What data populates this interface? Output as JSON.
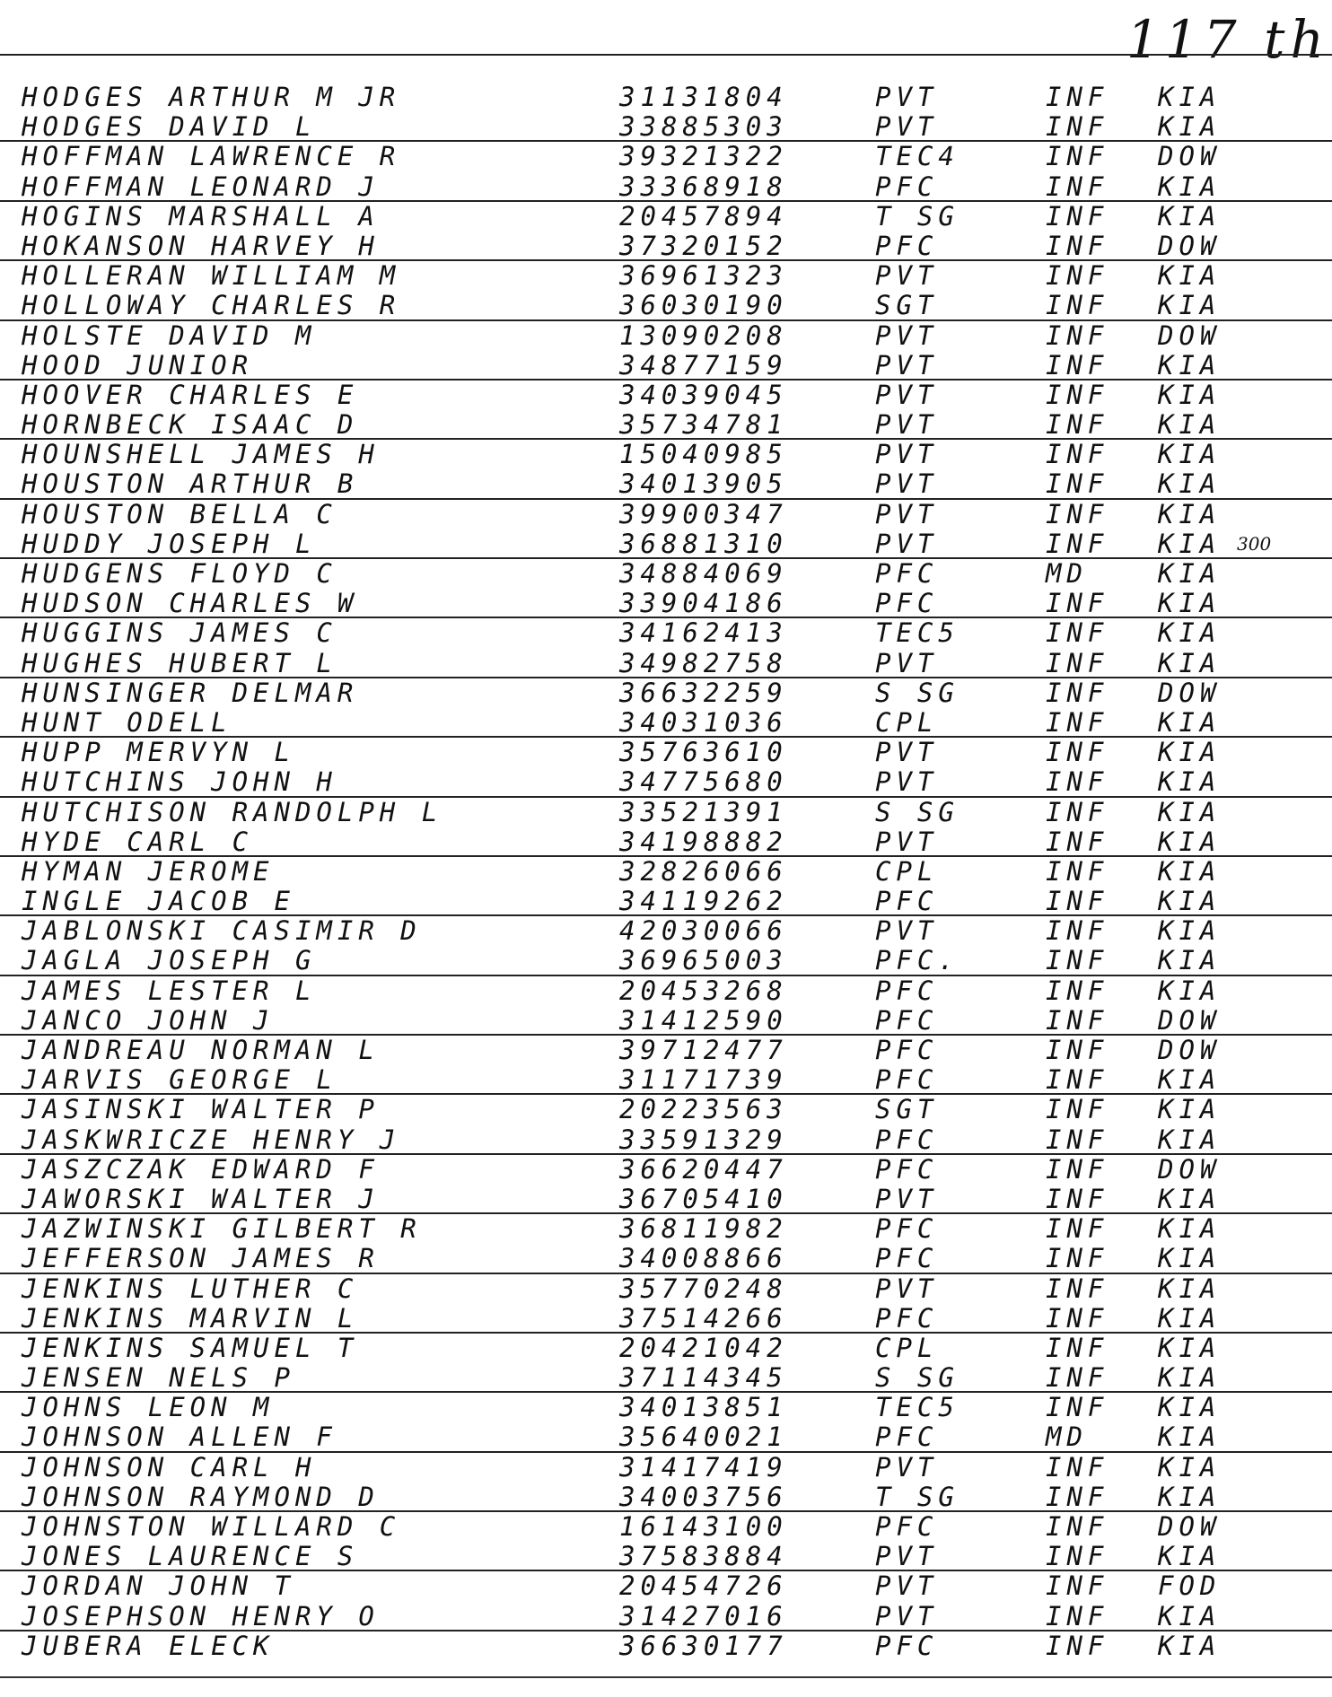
{
  "page_label": "117 th",
  "records": [
    {
      "name": "HODGES ARTHUR M JR",
      "serial": "31131804",
      "rank": "PVT",
      "arm": "INF",
      "status": "KIA"
    },
    {
      "name": "HODGES DAVID L",
      "serial": "33885303",
      "rank": "PVT",
      "arm": "INF",
      "status": "KIA"
    },
    {
      "name": "HOFFMAN LAWRENCE R",
      "serial": "39321322",
      "rank": "TEC4",
      "arm": "INF",
      "status": "DOW"
    },
    {
      "name": "HOFFMAN LEONARD J",
      "serial": "33368918",
      "rank": "PFC",
      "arm": "INF",
      "status": "KIA"
    },
    {
      "name": "HOGINS MARSHALL A",
      "serial": "20457894",
      "rank": "T SG",
      "arm": "INF",
      "status": "KIA"
    },
    {
      "name": "HOKANSON HARVEY H",
      "serial": "37320152",
      "rank": "PFC",
      "arm": "INF",
      "status": "DOW"
    },
    {
      "name": "HOLLERAN WILLIAM M",
      "serial": "36961323",
      "rank": "PVT",
      "arm": "INF",
      "status": "KIA"
    },
    {
      "name": "HOLLOWAY CHARLES R",
      "serial": "36030190",
      "rank": "SGT",
      "arm": "INF",
      "status": "KIA"
    },
    {
      "name": "HOLSTE DAVID M",
      "serial": "13090208",
      "rank": "PVT",
      "arm": "INF",
      "status": "DOW"
    },
    {
      "name": "HOOD JUNIOR",
      "serial": "34877159",
      "rank": "PVT",
      "arm": "INF",
      "status": "KIA"
    },
    {
      "name": "HOOVER CHARLES E",
      "serial": "34039045",
      "rank": "PVT",
      "arm": "INF",
      "status": "KIA"
    },
    {
      "name": "HORNBECK ISAAC D",
      "serial": "35734781",
      "rank": "PVT",
      "arm": "INF",
      "status": "KIA"
    },
    {
      "name": "HOUNSHELL JAMES H",
      "serial": "15040985",
      "rank": "PVT",
      "arm": "INF",
      "status": "KIA"
    },
    {
      "name": "HOUSTON ARTHUR B",
      "serial": "34013905",
      "rank": "PVT",
      "arm": "INF",
      "status": "KIA"
    },
    {
      "name": "HOUSTON BELLA C",
      "serial": "39900347",
      "rank": "PVT",
      "arm": "INF",
      "status": "KIA"
    },
    {
      "name": "HUDDY JOSEPH L",
      "serial": "36881310",
      "rank": "PVT",
      "arm": "INF",
      "status": "KIA",
      "note": "300"
    },
    {
      "name": "HUDGENS FLOYD C",
      "serial": "34884069",
      "rank": "PFC",
      "arm": "MD",
      "status": "KIA"
    },
    {
      "name": "HUDSON CHARLES W",
      "serial": "33904186",
      "rank": "PFC",
      "arm": "INF",
      "status": "KIA"
    },
    {
      "name": "HUGGINS JAMES C",
      "serial": "34162413",
      "rank": "TEC5",
      "arm": "INF",
      "status": "KIA"
    },
    {
      "name": "HUGHES HUBERT L",
      "serial": "34982758",
      "rank": "PVT",
      "arm": "INF",
      "status": "KIA"
    },
    {
      "name": "HUNSINGER DELMAR",
      "serial": "36632259",
      "rank": "S SG",
      "arm": "INF",
      "status": "DOW"
    },
    {
      "name": "HUNT ODELL",
      "serial": "34031036",
      "rank": "CPL",
      "arm": "INF",
      "status": "KIA"
    },
    {
      "name": "HUPP MERVYN L",
      "serial": "35763610",
      "rank": "PVT",
      "arm": "INF",
      "status": "KIA"
    },
    {
      "name": "HUTCHINS JOHN H",
      "serial": "34775680",
      "rank": "PVT",
      "arm": "INF",
      "status": "KIA"
    },
    {
      "name": "HUTCHISON RANDOLPH L",
      "serial": "33521391",
      "rank": "S SG",
      "arm": "INF",
      "status": "KIA"
    },
    {
      "name": "HYDE CARL C",
      "serial": "34198882",
      "rank": "PVT",
      "arm": "INF",
      "status": "KIA"
    },
    {
      "name": "HYMAN JEROME",
      "serial": "32826066",
      "rank": "CPL",
      "arm": "INF",
      "status": "KIA"
    },
    {
      "name": "INGLE JACOB E",
      "serial": "34119262",
      "rank": "PFC",
      "arm": "INF",
      "status": "KIA"
    },
    {
      "name": "JABLONSKI CASIMIR D",
      "serial": "42030066",
      "rank": "PVT",
      "arm": "INF",
      "status": "KIA"
    },
    {
      "name": "JAGLA JOSEPH G",
      "serial": "36965003",
      "rank": "PFC.",
      "arm": "INF",
      "status": "KIA"
    },
    {
      "name": "JAMES LESTER L",
      "serial": "20453268",
      "rank": "PFC",
      "arm": "INF",
      "status": "KIA"
    },
    {
      "name": "JANCO JOHN J",
      "serial": "31412590",
      "rank": "PFC",
      "arm": "INF",
      "status": "DOW"
    },
    {
      "name": "JANDREAU NORMAN L",
      "serial": "39712477",
      "rank": "PFC",
      "arm": "INF",
      "status": "DOW"
    },
    {
      "name": "JARVIS GEORGE L",
      "serial": "31171739",
      "rank": "PFC",
      "arm": "INF",
      "status": "KIA"
    },
    {
      "name": "JASINSKI WALTER P",
      "serial": "20223563",
      "rank": "SGT",
      "arm": "INF",
      "status": "KIA"
    },
    {
      "name": "JASKWRICZE HENRY J",
      "serial": "33591329",
      "rank": "PFC",
      "arm": "INF",
      "status": "KIA"
    },
    {
      "name": "JASZCZAK EDWARD F",
      "serial": "36620447",
      "rank": "PFC",
      "arm": "INF",
      "status": "DOW"
    },
    {
      "name": "JAWORSKI WALTER J",
      "serial": "36705410",
      "rank": "PVT",
      "arm": "INF",
      "status": "KIA"
    },
    {
      "name": "JAZWINSKI GILBERT R",
      "serial": "36811982",
      "rank": "PFC",
      "arm": "INF",
      "status": "KIA"
    },
    {
      "name": "JEFFERSON JAMES R",
      "serial": "34008866",
      "rank": "PFC",
      "arm": "INF",
      "status": "KIA"
    },
    {
      "name": "JENKINS LUTHER C",
      "serial": "35770248",
      "rank": "PVT",
      "arm": "INF",
      "status": "KIA"
    },
    {
      "name": "JENKINS MARVIN L",
      "serial": "37514266",
      "rank": "PFC",
      "arm": "INF",
      "status": "KIA"
    },
    {
      "name": "JENKINS SAMUEL T",
      "serial": "20421042",
      "rank": "CPL",
      "arm": "INF",
      "status": "KIA"
    },
    {
      "name": "JENSEN NELS P",
      "serial": "37114345",
      "rank": "S SG",
      "arm": "INF",
      "status": "KIA"
    },
    {
      "name": "JOHNS LEON M",
      "serial": "34013851",
      "rank": "TEC5",
      "arm": "INF",
      "status": "KIA"
    },
    {
      "name": "JOHNSON ALLEN F",
      "serial": "35640021",
      "rank": "PFC",
      "arm": "MD",
      "status": "KIA"
    },
    {
      "name": "JOHNSON CARL H",
      "serial": "31417419",
      "rank": "PVT",
      "arm": "INF",
      "status": "KIA"
    },
    {
      "name": "JOHNSON RAYMOND D",
      "serial": "34003756",
      "rank": "T SG",
      "arm": "INF",
      "status": "KIA"
    },
    {
      "name": "JOHNSTON WILLARD C",
      "serial": "16143100",
      "rank": "PFC",
      "arm": "INF",
      "status": "DOW"
    },
    {
      "name": "JONES LAURENCE S",
      "serial": "37583884",
      "rank": "PVT",
      "arm": "INF",
      "status": "KIA"
    },
    {
      "name": "JORDAN JOHN T",
      "serial": "20454726",
      "rank": "PVT",
      "arm": "INF",
      "status": "FOD"
    },
    {
      "name": "JOSEPHSON HENRY O",
      "serial": "31427016",
      "rank": "PVT",
      "arm": "INF",
      "status": "KIA"
    },
    {
      "name": "JUBERA ELECK",
      "serial": "36630177",
      "rank": "PFC",
      "arm": "INF",
      "status": "KIA"
    }
  ]
}
